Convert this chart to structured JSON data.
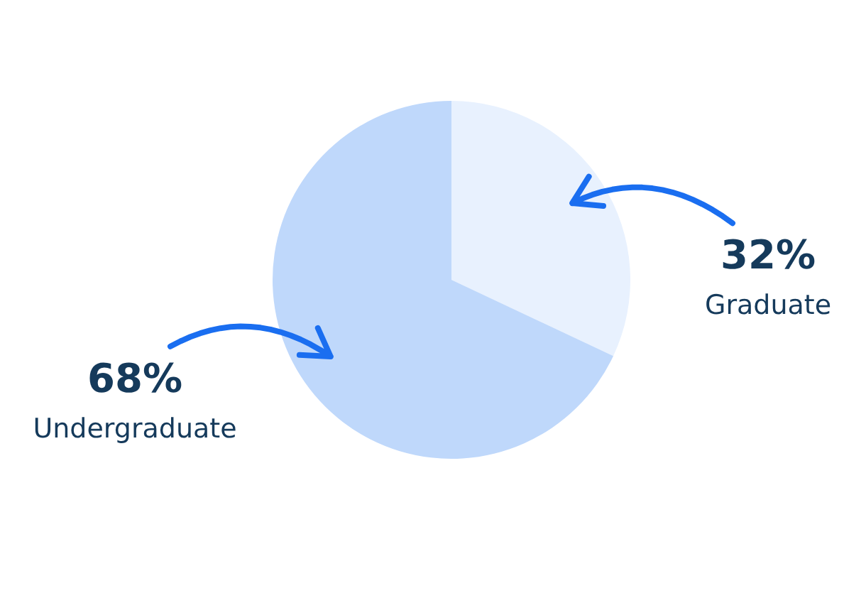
{
  "chart_data": {
    "type": "pie",
    "categories": [
      "Graduate",
      "Undergraduate"
    ],
    "values": [
      32,
      68
    ],
    "colors": [
      "#e8f1fe",
      "#bfd8fb"
    ],
    "value_labels": [
      "32%",
      "68%"
    ]
  }
}
